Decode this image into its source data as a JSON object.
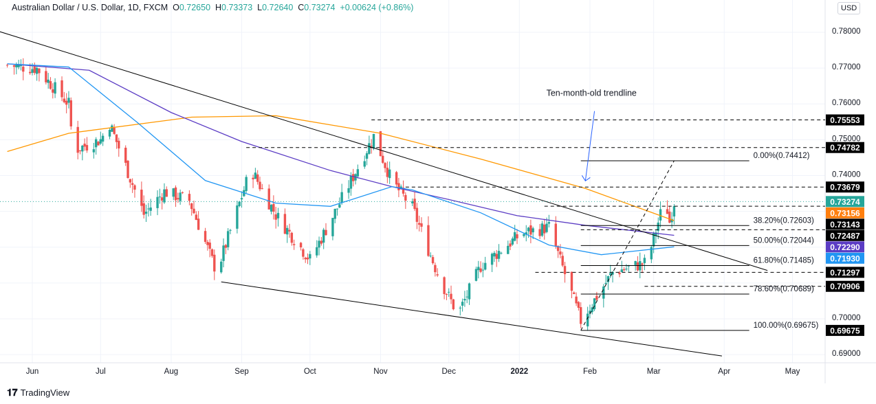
{
  "header": {
    "symbol": "Australian Dollar / U.S. Dollar, 1D, FXCM",
    "open_label": "O",
    "open": "0.72650",
    "high_label": "H",
    "high": "0.73373",
    "low_label": "L",
    "low": "0.72640",
    "close_label": "C",
    "close": "0.73274",
    "change": "+0.00624 (+0.86%)"
  },
  "currency": "USD",
  "footer": {
    "brand": "TradingView"
  },
  "chart_data": {
    "type": "candlestick",
    "ylim": [
      0.6865,
      0.7835
    ],
    "y_ticks": [
      "0.78000",
      "0.77000",
      "0.76000",
      "0.75000",
      "0.74000",
      "0.70000",
      "0.69000"
    ],
    "x_ticks": [
      {
        "label": "Jun",
        "date": "2021-06-01"
      },
      {
        "label": "Jul",
        "date": "2021-07-01"
      },
      {
        "label": "Aug",
        "date": "2021-08-01"
      },
      {
        "label": "Sep",
        "date": "2021-09-01"
      },
      {
        "label": "Oct",
        "date": "2021-10-01"
      },
      {
        "label": "Nov",
        "date": "2021-11-01"
      },
      {
        "label": "Dec",
        "date": "2021-12-01"
      },
      {
        "label": "2022",
        "date": "2022-01-01"
      },
      {
        "label": "Feb",
        "date": "2022-02-01"
      },
      {
        "label": "Mar",
        "date": "2022-03-01"
      },
      {
        "label": "Apr",
        "date": "2022-04-01"
      },
      {
        "label": "May",
        "date": "2022-05-01"
      }
    ],
    "price_path": [
      [
        "2021-05-21",
        0.7708
      ],
      [
        "2021-06-03",
        0.7699
      ],
      [
        "2021-06-17",
        0.76
      ],
      [
        "2021-06-19",
        0.747
      ],
      [
        "2021-07-01",
        0.75
      ],
      [
        "2021-07-05",
        0.7545
      ],
      [
        "2021-07-20",
        0.7292
      ],
      [
        "2021-07-29",
        0.7355
      ],
      [
        "2021-08-09",
        0.733
      ],
      [
        "2021-08-21",
        0.713
      ],
      [
        "2021-09-05",
        0.7419
      ],
      [
        "2021-09-16",
        0.729
      ],
      [
        "2021-10-01",
        0.7165
      ],
      [
        "2021-10-13",
        0.731
      ],
      [
        "2021-10-29",
        0.751
      ],
      [
        "2021-11-06",
        0.7383
      ],
      [
        "2021-11-15",
        0.731
      ],
      [
        "2021-11-27",
        0.7111
      ],
      [
        "2021-12-05",
        0.7012
      ],
      [
        "2021-12-15",
        0.7147
      ],
      [
        "2022-01-02",
        0.7238
      ],
      [
        "2022-01-14",
        0.7256
      ],
      [
        "2022-01-28",
        0.6994
      ],
      [
        "2022-02-11",
        0.713
      ],
      [
        "2022-02-26",
        0.7157
      ],
      [
        "2022-03-06",
        0.7337
      ],
      [
        "2022-03-08",
        0.727
      ],
      [
        "2022-03-10",
        0.7327
      ]
    ],
    "moving_averages": [
      {
        "color": "#ff9800",
        "points": [
          [
            "2021-05-21",
            0.7467
          ],
          [
            "2021-06-17",
            0.7518
          ],
          [
            "2021-08-10",
            0.7563
          ],
          [
            "2021-09-16",
            0.7567
          ],
          [
            "2021-11-01",
            0.7518
          ],
          [
            "2021-12-15",
            0.7446
          ],
          [
            "2022-01-30",
            0.7364
          ],
          [
            "2022-03-10",
            0.7274
          ]
        ]
      },
      {
        "color": "#5b3cc4",
        "points": [
          [
            "2021-05-21",
            0.7712
          ],
          [
            "2021-06-26",
            0.7694
          ],
          [
            "2021-08-01",
            0.7576
          ],
          [
            "2021-09-01",
            0.7495
          ],
          [
            "2021-10-10",
            0.7414
          ],
          [
            "2021-11-06",
            0.7369
          ],
          [
            "2021-12-01",
            0.7333
          ],
          [
            "2021-12-31",
            0.7288
          ],
          [
            "2022-01-30",
            0.7261
          ],
          [
            "2022-03-10",
            0.7233
          ]
        ]
      },
      {
        "color": "#2196f3",
        "points": [
          [
            "2021-05-21",
            0.7712
          ],
          [
            "2021-06-17",
            0.7703
          ],
          [
            "2021-07-17",
            0.7549
          ],
          [
            "2021-08-16",
            0.7386
          ],
          [
            "2021-09-16",
            0.7323
          ],
          [
            "2021-10-10",
            0.7314
          ],
          [
            "2021-11-06",
            0.7369
          ],
          [
            "2021-11-15",
            0.736
          ],
          [
            "2021-12-15",
            0.7296
          ],
          [
            "2022-01-14",
            0.7206
          ],
          [
            "2022-02-06",
            0.7179
          ],
          [
            "2022-03-10",
            0.7201
          ]
        ]
      }
    ],
    "trendlines": [
      {
        "style": "solid",
        "from": [
          "2021-05-11",
          0.7815
        ],
        "to": [
          "2022-04-20",
          0.7135
        ]
      },
      {
        "style": "solid",
        "from": [
          "2021-08-23",
          0.7103
        ],
        "to": [
          "2022-03-31",
          0.6896
        ]
      },
      {
        "style": "dashed",
        "from": [
          "2022-01-28",
          0.69675
        ],
        "to": [
          "2022-03-10",
          0.74412
        ]
      }
    ],
    "levels": [
      {
        "value": 0.75553,
        "label": "0.75553",
        "from": "2021-10-28",
        "color": "#000000"
      },
      {
        "value": 0.74782,
        "label": "0.74782",
        "from": "2021-09-03",
        "color": "#000000"
      },
      {
        "value": 0.73679,
        "label": "0.73679",
        "from": "2021-11-12",
        "color": "#000000"
      },
      {
        "value": 0.73143,
        "label": "0.73143",
        "from": "2022-01-12",
        "color": "#000000"
      },
      {
        "value": 0.72487,
        "label": "0.72487",
        "from": "2022-01-28",
        "color": "#000000"
      },
      {
        "value": 0.71297,
        "label": "0.71297",
        "from": "2022-01-08",
        "color": "#000000"
      },
      {
        "value": 0.70906,
        "label": "0.70906",
        "from": "2022-02-25",
        "color": "#000000"
      }
    ],
    "fib": {
      "from": "2022-01-28",
      "to": "2022-04-12",
      "levels": [
        {
          "value": 0.74412,
          "label": "0.00%(0.74412)"
        },
        {
          "value": 0.72603,
          "label": "38.20%(0.72603)"
        },
        {
          "value": 0.72044,
          "label": "50.00%(0.72044)"
        },
        {
          "value": 0.71485,
          "label": "61.80%(0.71485)"
        },
        {
          "value": 0.70689,
          "label": "78.60%(0.70689)"
        },
        {
          "value": 0.69675,
          "label": "100.00%(0.69675)"
        }
      ]
    },
    "price_labels": [
      {
        "label": "0.73274",
        "value": 0.73274,
        "color": "#26a69a"
      },
      {
        "label": "0.73156",
        "value": 0.73156,
        "color": "#ff7f0e"
      },
      {
        "label": "0.72290",
        "value": 0.7229,
        "color": "#5b3cc4"
      },
      {
        "label": "0.71930",
        "value": 0.7193,
        "color": "#2196f3"
      },
      {
        "label": "0.69675",
        "value": 0.69675,
        "color": "#000000"
      }
    ],
    "last_price": 0.73274,
    "annotation": {
      "text": "Ten-month-old trendline",
      "arrow_from": [
        "2022-02-03",
        0.758
      ],
      "arrow_to": [
        "2022-01-30",
        0.7385
      ]
    },
    "up_color": "#26a69a",
    "down_color": "#ef5350"
  }
}
